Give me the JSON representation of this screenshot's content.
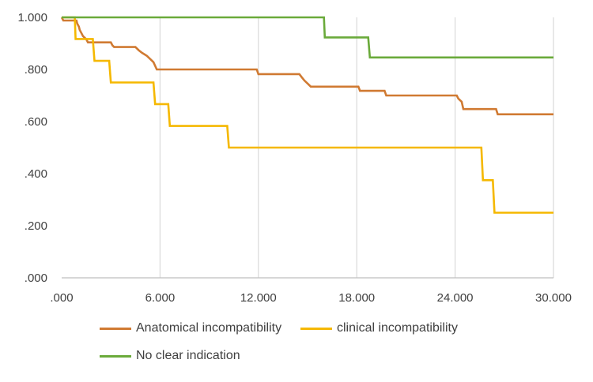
{
  "chart_data": {
    "type": "line",
    "subtype": "step (Kaplan-Meier)",
    "title": "",
    "xlabel": "",
    "ylabel": "",
    "xlim": [
      0,
      30
    ],
    "ylim": [
      0,
      1
    ],
    "x_ticks": [
      ".000",
      "6.000",
      "12.000",
      "18.000",
      "24.000",
      "30.000"
    ],
    "y_ticks": [
      ".000",
      ".200",
      ".400",
      ".600",
      ".800",
      "1.000"
    ],
    "grid": "vertical",
    "legend_position": "bottom",
    "series": [
      {
        "name": "Anatomical incompatibility",
        "color": "#D07A32",
        "points": [
          [
            0,
            1.0
          ],
          [
            0.1,
            0.988
          ],
          [
            0.9,
            0.988
          ],
          [
            0.95,
            0.976
          ],
          [
            1.05,
            0.964
          ],
          [
            1.1,
            0.952
          ],
          [
            1.2,
            0.94
          ],
          [
            1.3,
            0.928
          ],
          [
            1.5,
            0.916
          ],
          [
            1.6,
            0.904
          ],
          [
            3.0,
            0.904
          ],
          [
            3.1,
            0.892
          ],
          [
            3.2,
            0.886
          ],
          [
            4.5,
            0.886
          ],
          [
            4.7,
            0.874
          ],
          [
            4.9,
            0.864
          ],
          [
            5.2,
            0.852
          ],
          [
            5.4,
            0.84
          ],
          [
            5.6,
            0.828
          ],
          [
            5.8,
            0.8
          ],
          [
            11.9,
            0.8
          ],
          [
            12.0,
            0.782
          ],
          [
            14.5,
            0.782
          ],
          [
            14.65,
            0.77
          ],
          [
            14.8,
            0.758
          ],
          [
            15.0,
            0.746
          ],
          [
            15.2,
            0.734
          ],
          [
            18.1,
            0.734
          ],
          [
            18.2,
            0.718
          ],
          [
            19.7,
            0.718
          ],
          [
            19.8,
            0.7
          ],
          [
            24.1,
            0.7
          ],
          [
            24.2,
            0.688
          ],
          [
            24.4,
            0.676
          ],
          [
            24.5,
            0.648
          ],
          [
            26.5,
            0.648
          ],
          [
            26.6,
            0.628
          ],
          [
            30,
            0.628
          ]
        ]
      },
      {
        "name": "clinical incompatibility",
        "color": "#F5B800",
        "points": [
          [
            0,
            1.0
          ],
          [
            0.8,
            1.0
          ],
          [
            0.85,
            0.917
          ],
          [
            1.9,
            0.917
          ],
          [
            2.0,
            0.833
          ],
          [
            2.9,
            0.833
          ],
          [
            3.0,
            0.75
          ],
          [
            5.6,
            0.75
          ],
          [
            5.7,
            0.667
          ],
          [
            6.5,
            0.667
          ],
          [
            6.6,
            0.583
          ],
          [
            10.1,
            0.583
          ],
          [
            10.2,
            0.5
          ],
          [
            25.6,
            0.5
          ],
          [
            25.7,
            0.375
          ],
          [
            26.3,
            0.375
          ],
          [
            26.4,
            0.25
          ],
          [
            30,
            0.25
          ]
        ]
      },
      {
        "name": "No clear indication",
        "color": "#6AAA3A",
        "points": [
          [
            0,
            1.0
          ],
          [
            16.0,
            1.0
          ],
          [
            16.05,
            0.923
          ],
          [
            18.7,
            0.923
          ],
          [
            18.8,
            0.846
          ],
          [
            30,
            0.846
          ]
        ]
      }
    ]
  }
}
